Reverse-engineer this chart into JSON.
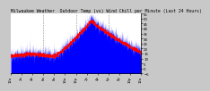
{
  "title": "Milwaukee Weather  Outdoor Temp (vs) Wind Chill per Minute (Last 24 Hours)",
  "bg_color": "#c8c8c8",
  "plot_bg_color": "#ffffff",
  "bar_color": "#0000ff",
  "line_color": "#ff0000",
  "grid_color": "#808080",
  "ylim": [
    -5,
    55
  ],
  "yticks": [
    -5,
    0,
    5,
    10,
    15,
    20,
    25,
    30,
    35,
    40,
    45,
    50,
    55
  ],
  "n_points": 1440,
  "title_fontsize": 3.5,
  "tick_fontsize": 2.8,
  "seed": 42
}
